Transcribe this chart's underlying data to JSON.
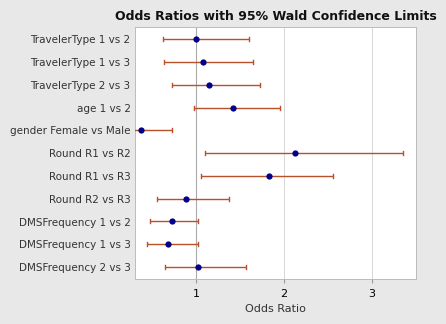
{
  "title": "Odds Ratios with 95% Wald Confidence Limits",
  "xlabel": "Odds Ratio",
  "categories": [
    "TravelerType 1 vs 2",
    "TravelerType 1 vs 3",
    "TravelerType 2 vs 3",
    "age 1 vs 2",
    "gender Female vs Male",
    "Round R1 vs R2",
    "Round R1 vs R3",
    "Round R2 vs R3",
    "DMSFrequency 1 vs 2",
    "DMSFrequency 1 vs 3",
    "DMSFrequency 2 vs 3"
  ],
  "or_values": [
    1.0,
    1.08,
    1.15,
    1.42,
    0.37,
    2.12,
    1.83,
    0.88,
    0.72,
    0.68,
    1.02
  ],
  "ci_low": [
    0.62,
    0.63,
    0.72,
    0.97,
    0.2,
    1.1,
    1.05,
    0.55,
    0.48,
    0.44,
    0.64
  ],
  "ci_high": [
    1.6,
    1.65,
    1.73,
    1.95,
    0.72,
    3.35,
    2.55,
    1.37,
    1.02,
    1.02,
    1.57
  ],
  "point_color": "#00008B",
  "line_color": "#B8502A",
  "outer_bg": "#E8E8E8",
  "plot_bg": "#FFFFFF",
  "grid_color": "#D0D0D0",
  "vline_color": "#AAAAAA",
  "xlim": [
    0.3,
    3.5
  ],
  "xticks": [
    1,
    2,
    3
  ],
  "title_fontsize": 9,
  "label_fontsize": 7.5,
  "tick_fontsize": 8,
  "xlabel_fontsize": 8,
  "cap_size": 0.09,
  "point_size": 4.5,
  "line_width": 1.0
}
